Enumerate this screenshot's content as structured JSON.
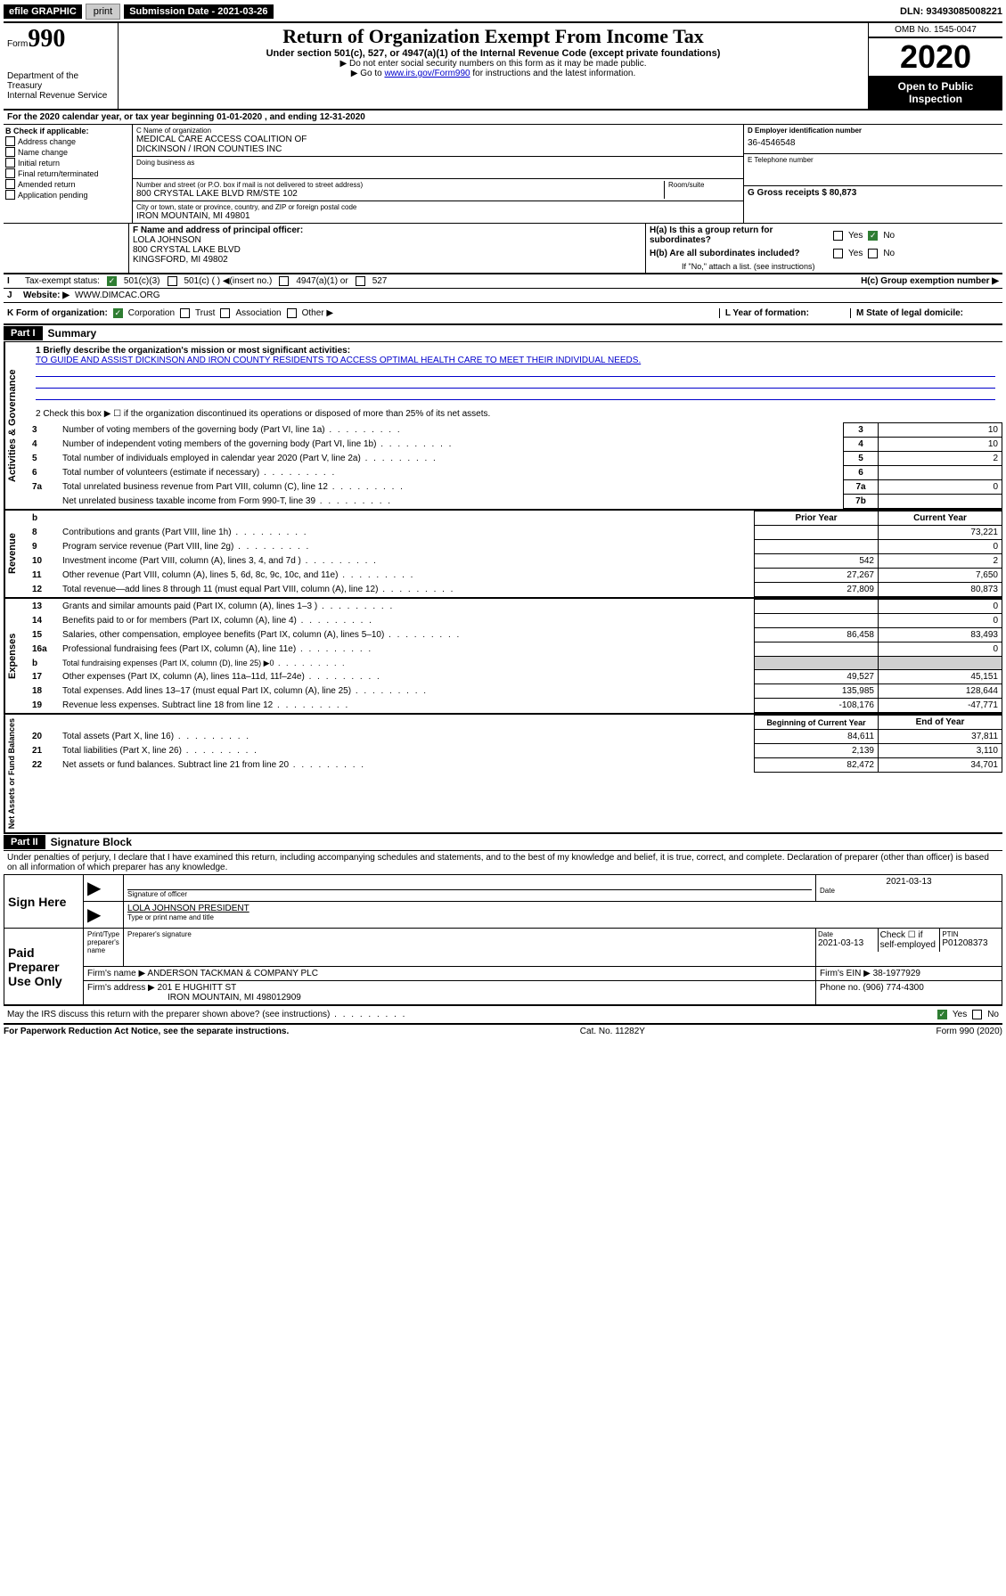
{
  "topbar": {
    "efile": "efile GRAPHIC",
    "print": "print",
    "submission_label": "Submission Date - 2021-03-26",
    "dln_label": "DLN: 93493085008221"
  },
  "header": {
    "form_label": "Form",
    "form_number": "990",
    "dept1": "Department of the Treasury",
    "dept2": "Internal Revenue Service",
    "title": "Return of Organization Exempt From Income Tax",
    "sub1": "Under section 501(c), 527, or 4947(a)(1) of the Internal Revenue Code (except private foundations)",
    "sub2": "▶ Do not enter social security numbers on this form as it may be made public.",
    "sub3a": "▶ Go to ",
    "sub3_link": "www.irs.gov/Form990",
    "sub3b": " for instructions and the latest information.",
    "omb": "OMB No. 1545-0047",
    "year": "2020",
    "open1": "Open to Public",
    "open2": "Inspection"
  },
  "period": {
    "line": "For the 2020 calendar year, or tax year beginning 01-01-2020    , and ending 12-31-2020"
  },
  "boxB": {
    "label": "B Check if applicable:",
    "items": [
      "Address change",
      "Name change",
      "Initial return",
      "Final return/terminated",
      "Amended return",
      "Application pending"
    ]
  },
  "boxC": {
    "name_label": "C Name of organization",
    "name1": "MEDICAL CARE ACCESS COALITION OF",
    "name2": "DICKINSON / IRON COUNTIES INC",
    "dba_label": "Doing business as",
    "addr_label": "Number and street (or P.O. box if mail is not delivered to street address)",
    "room_label": "Room/suite",
    "addr": "800 CRYSTAL LAKE BLVD RM/STE 102",
    "city_label": "City or town, state or province, country, and ZIP or foreign postal code",
    "city": "IRON MOUNTAIN, MI  49801"
  },
  "boxD": {
    "label": "D Employer identification number",
    "val": "36-4546548"
  },
  "boxE": {
    "label": "E Telephone number",
    "val": ""
  },
  "boxG": {
    "label": "G Gross receipts $ 80,873"
  },
  "boxF": {
    "label": "F  Name and address of principal officer:",
    "name": "LOLA JOHNSON",
    "addr": "800 CRYSTAL LAKE BLVD",
    "city": "KINGSFORD, MI  49802"
  },
  "boxH": {
    "a": "H(a)  Is this a group return for subordinates?",
    "b": "H(b)  Are all subordinates included?",
    "note": "If \"No,\" attach a list. (see instructions)",
    "c": "H(c)  Group exemption number ▶",
    "yes": "Yes",
    "no": "No"
  },
  "boxI": {
    "label": "I",
    "text": "Tax-exempt status:",
    "opt1": "501(c)(3)",
    "opt2": "501(c) (  ) ◀(insert no.)",
    "opt3": "4947(a)(1) or",
    "opt4": "527"
  },
  "boxJ": {
    "label": "J",
    "text": "Website: ▶",
    "val": "WWW.DIMCAC.ORG"
  },
  "boxK": {
    "text": "K Form of organization:",
    "opts": [
      "Corporation",
      "Trust",
      "Association",
      "Other ▶"
    ],
    "L": "L Year of formation:",
    "M": "M State of legal domicile:"
  },
  "part1": {
    "label": "Part I",
    "title": "Summary",
    "side_label": "Activities & Governance",
    "l1_label": "1  Briefly describe the organization's mission or most significant activities:",
    "l1_text": "TO GUIDE AND ASSIST DICKINSON AND IRON COUNTY RESIDENTS TO ACCESS OPTIMAL HEALTH CARE TO MEET THEIR INDIVIDUAL NEEDS.",
    "l2": "2   Check this box ▶ ☐  if the organization discontinued its operations or disposed of more than 25% of its net assets.",
    "lines_a": [
      {
        "n": "3",
        "t": "Number of voting members of the governing body (Part VI, line 1a)",
        "k": "3",
        "v": "10"
      },
      {
        "n": "4",
        "t": "Number of independent voting members of the governing body (Part VI, line 1b)",
        "k": "4",
        "v": "10"
      },
      {
        "n": "5",
        "t": "Total number of individuals employed in calendar year 2020 (Part V, line 2a)",
        "k": "5",
        "v": "2"
      },
      {
        "n": "6",
        "t": "Total number of volunteers (estimate if necessary)",
        "k": "6",
        "v": ""
      },
      {
        "n": "7a",
        "t": "Total unrelated business revenue from Part VIII, column (C), line 12",
        "k": "7a",
        "v": "0"
      },
      {
        "n": "",
        "t": "Net unrelated business taxable income from Form 990-T, line 39",
        "k": "7b",
        "v": ""
      }
    ],
    "rev_label": "Revenue",
    "exp_label": "Expenses",
    "net_label": "Net Assets or Fund Balances",
    "head_b": "b",
    "head_prior": "Prior Year",
    "head_curr": "Current Year",
    "rev_lines": [
      {
        "n": "8",
        "t": "Contributions and grants (Part VIII, line 1h)",
        "p": "",
        "c": "73,221"
      },
      {
        "n": "9",
        "t": "Program service revenue (Part VIII, line 2g)",
        "p": "",
        "c": "0"
      },
      {
        "n": "10",
        "t": "Investment income (Part VIII, column (A), lines 3, 4, and 7d )",
        "p": "542",
        "c": "2"
      },
      {
        "n": "11",
        "t": "Other revenue (Part VIII, column (A), lines 5, 6d, 8c, 9c, 10c, and 11e)",
        "p": "27,267",
        "c": "7,650"
      },
      {
        "n": "12",
        "t": "Total revenue—add lines 8 through 11 (must equal Part VIII, column (A), line 12)",
        "p": "27,809",
        "c": "80,873"
      }
    ],
    "exp_lines": [
      {
        "n": "13",
        "t": "Grants and similar amounts paid (Part IX, column (A), lines 1–3 )",
        "p": "",
        "c": "0"
      },
      {
        "n": "14",
        "t": "Benefits paid to or for members (Part IX, column (A), line 4)",
        "p": "",
        "c": "0"
      },
      {
        "n": "15",
        "t": "Salaries, other compensation, employee benefits (Part IX, column (A), lines 5–10)",
        "p": "86,458",
        "c": "83,493"
      },
      {
        "n": "16a",
        "t": "Professional fundraising fees (Part IX, column (A), line 11e)",
        "p": "",
        "c": "0"
      },
      {
        "n": "b",
        "t": "Total fundraising expenses (Part IX, column (D), line 25) ▶0",
        "p": "",
        "c": "",
        "shade": true
      },
      {
        "n": "17",
        "t": "Other expenses (Part IX, column (A), lines 11a–11d, 11f–24e)",
        "p": "49,527",
        "c": "45,151"
      },
      {
        "n": "18",
        "t": "Total expenses. Add lines 13–17 (must equal Part IX, column (A), line 25)",
        "p": "135,985",
        "c": "128,644"
      },
      {
        "n": "19",
        "t": "Revenue less expenses. Subtract line 18 from line 12",
        "p": "-108,176",
        "c": "-47,771"
      }
    ],
    "head_boy": "Beginning of Current Year",
    "head_eoy": "End of Year",
    "net_lines": [
      {
        "n": "20",
        "t": "Total assets (Part X, line 16)",
        "p": "84,611",
        "c": "37,811"
      },
      {
        "n": "21",
        "t": "Total liabilities (Part X, line 26)",
        "p": "2,139",
        "c": "3,110"
      },
      {
        "n": "22",
        "t": "Net assets or fund balances. Subtract line 21 from line 20",
        "p": "82,472",
        "c": "34,701"
      }
    ]
  },
  "part2": {
    "label": "Part II",
    "title": "Signature Block",
    "decl": "Under penalties of perjury, I declare that I have examined this return, including accompanying schedules and statements, and to the best of my knowledge and belief, it is true, correct, and complete. Declaration of preparer (other than officer) is based on all information of which preparer has any knowledge.",
    "sign_here": "Sign Here",
    "sig_officer": "Signature of officer",
    "date": "Date",
    "date_val": "2021-03-13",
    "name_title": "LOLA JOHNSON  PRESIDENT",
    "type_label": "Type or print name and title",
    "paid_label": "Paid Preparer Use Only",
    "prep_name_label": "Print/Type preparer's name",
    "prep_sig_label": "Preparer's signature",
    "prep_date_label": "Date",
    "prep_date": "2021-03-13",
    "check_self": "Check ☐ if self-employed",
    "ptin_label": "PTIN",
    "ptin": "P01208373",
    "firm_name_label": "Firm's name    ▶",
    "firm_name": "ANDERSON TACKMAN & COMPANY PLC",
    "firm_ein_label": "Firm's EIN ▶",
    "firm_ein": "38-1977929",
    "firm_addr_label": "Firm's address ▶",
    "firm_addr1": "201 E HUGHITT ST",
    "firm_addr2": "IRON MOUNTAIN, MI  498012909",
    "phone_label": "Phone no.",
    "phone": "(906) 774-4300",
    "discuss": "May the IRS discuss this return with the preparer shown above? (see instructions)",
    "yes": "Yes",
    "no": "No"
  },
  "footer": {
    "left": "For Paperwork Reduction Act Notice, see the separate instructions.",
    "mid": "Cat. No. 11282Y",
    "right": "Form 990 (2020)"
  }
}
